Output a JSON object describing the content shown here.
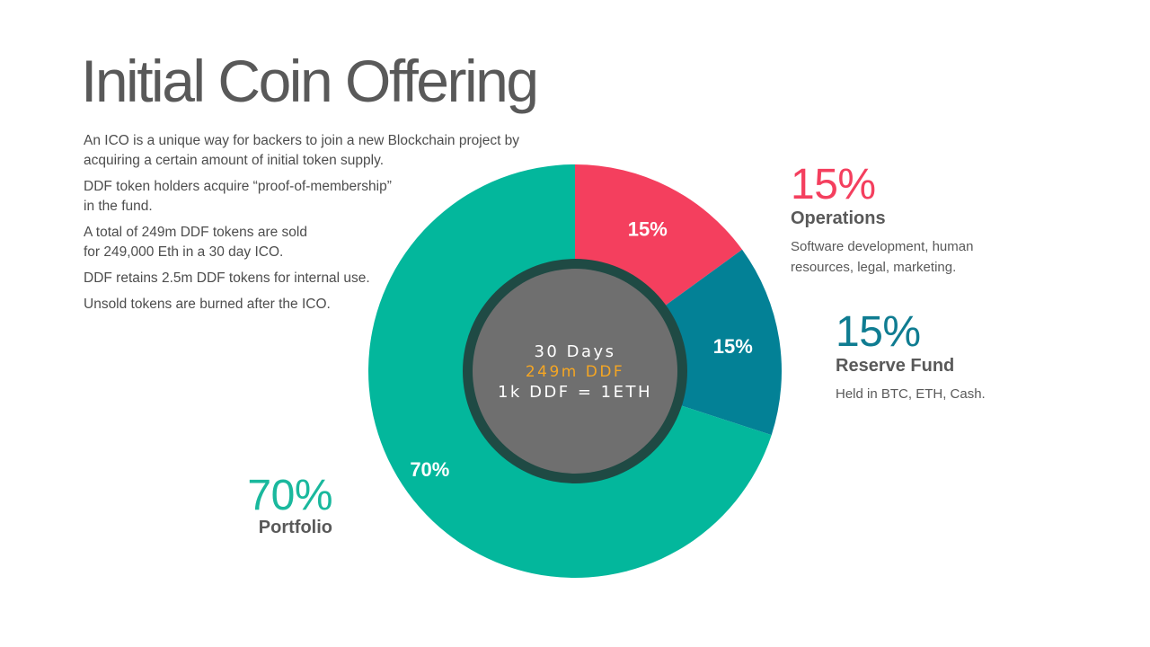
{
  "title": "Initial Coin Offering",
  "intro": [
    "An ICO is a unique way for backers to join a new Blockchain project by\nacquiring a certain amount of initial token supply.",
    "DDF token holders acquire “proof-of-membership”\nin the fund.",
    "A total of 249m DDF tokens are sold\nfor 249,000 Eth in a 30 day ICO.",
    "DDF retains 2.5m DDF tokens for internal use.",
    "Unsold tokens are burned after the ICO."
  ],
  "center": {
    "line1": "30 Days",
    "line2": "249m DDF",
    "line3": "1k DDF = 1ETH",
    "line2_color": "#f5a623"
  },
  "callouts": {
    "operations": {
      "pct": "15%",
      "name": "Operations",
      "desc": "Software development, human\nresources, legal, marketing.",
      "color": "#f43f5e"
    },
    "reserve": {
      "pct": "15%",
      "name": "Reserve Fund",
      "desc": "Held in BTC, ETH, Cash.",
      "color": "#0f7c91"
    },
    "portfolio": {
      "pct": "70%",
      "name": "Portfolio",
      "color": "#1ab89d"
    }
  },
  "chart_data": {
    "type": "pie",
    "variant": "donut",
    "categories": [
      "Operations",
      "Reserve Fund",
      "Portfolio"
    ],
    "values": [
      15,
      15,
      70
    ],
    "data_labels": [
      "15%",
      "15%",
      "70%"
    ],
    "colors": [
      "#f43f5e",
      "#038196",
      "#03b79c"
    ],
    "start_angle_deg": 0,
    "direction": "clockwise",
    "hole_color": "#6f6f6f",
    "hole_ring_color": "#1f4a44",
    "label_color": "#ffffff"
  }
}
